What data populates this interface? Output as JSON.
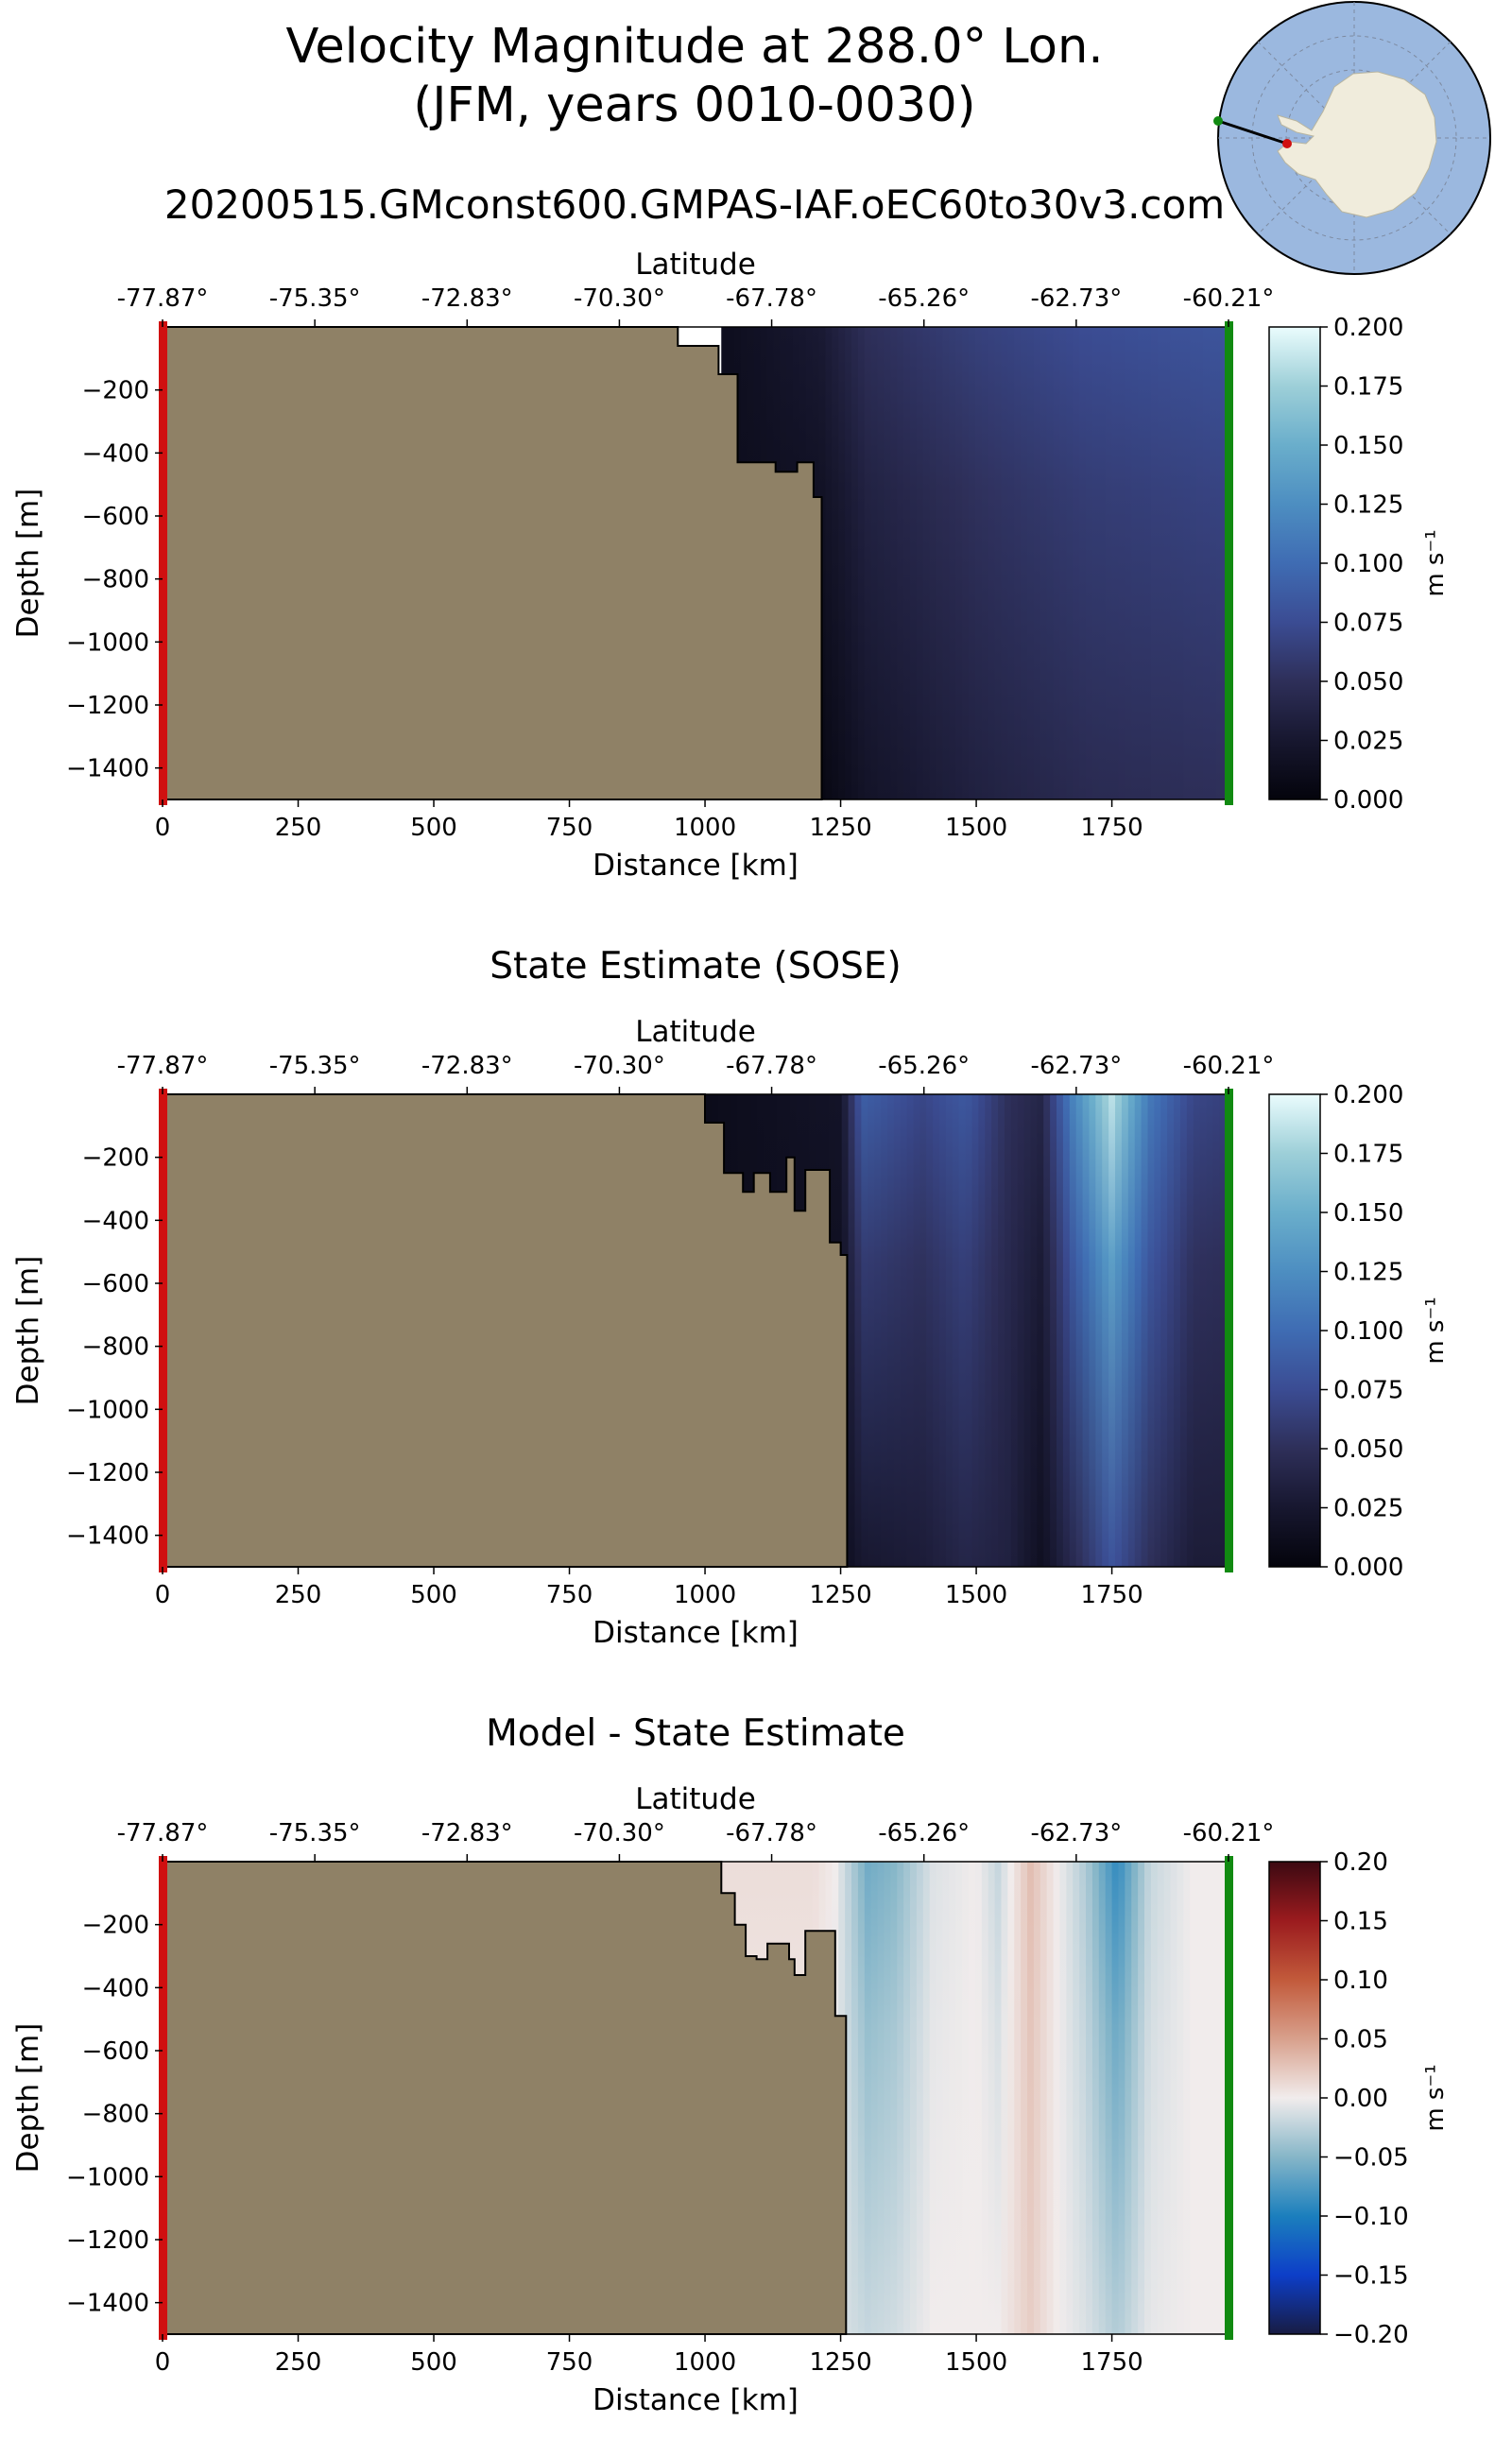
{
  "figure": {
    "title_line1": "Velocity Magnitude at 288.0° Lon.",
    "title_line2": "(JFM, years 0010-0030)",
    "run_name": "20200515.GMconst600.GMPAS-IAF.oEC60to30v3.com",
    "colors": {
      "land": "#8f8166",
      "start_marker": "#d01010",
      "end_marker": "#118a11",
      "ocean_map": "#9bb8df",
      "ice_map": "#f0ecdc"
    }
  },
  "chart_data": [
    {
      "type": "heatmap",
      "title": "",
      "xlabel": "Distance [km]",
      "ylabel": "Depth [m]",
      "top_xlabel": "Latitude",
      "xlim": [
        0,
        1965
      ],
      "ylim": [
        -1500,
        0
      ],
      "x_ticks": [
        0,
        250,
        500,
        750,
        1000,
        1250,
        1500,
        1750
      ],
      "y_ticks": [
        -200,
        -400,
        -600,
        -800,
        -1000,
        -1200,
        -1400
      ],
      "lat_ticks": [
        "-77.87°",
        "-75.35°",
        "-72.83°",
        "-70.30°",
        "-67.78°",
        "-65.26°",
        "-62.73°",
        "-60.21°"
      ],
      "colorbar": {
        "label": "m s⁻¹",
        "colormap": "ice",
        "min": 0.0,
        "max": 0.2,
        "ticks": [
          "0.000",
          "0.025",
          "0.050",
          "0.075",
          "0.100",
          "0.125",
          "0.150",
          "0.175",
          "0.200"
        ]
      },
      "land_boundary": [
        [
          0,
          -1500
        ],
        [
          0,
          0
        ],
        [
          950,
          0
        ],
        [
          950,
          -60
        ],
        [
          1025,
          -60
        ],
        [
          1025,
          -150
        ],
        [
          1060,
          -150
        ],
        [
          1060,
          -430
        ],
        [
          1130,
          -430
        ],
        [
          1130,
          -460
        ],
        [
          1170,
          -460
        ],
        [
          1170,
          -430
        ],
        [
          1200,
          -430
        ],
        [
          1200,
          -540
        ],
        [
          1215,
          -540
        ],
        [
          1215,
          -1500
        ]
      ],
      "field": {
        "x": [
          1030,
          1215,
          1300,
          1500,
          1700,
          1965
        ],
        "surface": [
          0.012,
          0.028,
          0.05,
          0.065,
          0.075,
          0.082
        ],
        "bottom": [
          0.01,
          0.005,
          0.02,
          0.035,
          0.045,
          0.05
        ]
      }
    },
    {
      "type": "heatmap",
      "title": "State Estimate (SOSE)",
      "xlabel": "Distance [km]",
      "ylabel": "Depth [m]",
      "top_xlabel": "Latitude",
      "xlim": [
        0,
        1965
      ],
      "ylim": [
        -1500,
        0
      ],
      "x_ticks": [
        0,
        250,
        500,
        750,
        1000,
        1250,
        1500,
        1750
      ],
      "y_ticks": [
        -200,
        -400,
        -600,
        -800,
        -1000,
        -1200,
        -1400
      ],
      "lat_ticks": [
        "-77.87°",
        "-75.35°",
        "-72.83°",
        "-70.30°",
        "-67.78°",
        "-65.26°",
        "-62.73°",
        "-60.21°"
      ],
      "colorbar": {
        "label": "m s⁻¹",
        "colormap": "ice",
        "min": 0.0,
        "max": 0.2,
        "ticks": [
          "0.000",
          "0.025",
          "0.050",
          "0.075",
          "0.100",
          "0.125",
          "0.150",
          "0.175",
          "0.200"
        ]
      },
      "land_boundary": [
        [
          0,
          -1500
        ],
        [
          0,
          0
        ],
        [
          1000,
          0
        ],
        [
          1000,
          -90
        ],
        [
          1035,
          -90
        ],
        [
          1035,
          -250
        ],
        [
          1070,
          -250
        ],
        [
          1070,
          -310
        ],
        [
          1090,
          -310
        ],
        [
          1090,
          -250
        ],
        [
          1120,
          -250
        ],
        [
          1120,
          -310
        ],
        [
          1150,
          -310
        ],
        [
          1150,
          -200
        ],
        [
          1165,
          -200
        ],
        [
          1165,
          -370
        ],
        [
          1185,
          -370
        ],
        [
          1185,
          -240
        ],
        [
          1230,
          -240
        ],
        [
          1230,
          -470
        ],
        [
          1250,
          -470
        ],
        [
          1250,
          -510
        ],
        [
          1262,
          -510
        ],
        [
          1262,
          -1500
        ]
      ],
      "field": {
        "x": [
          1000,
          1250,
          1290,
          1400,
          1480,
          1560,
          1620,
          1680,
          1750,
          1820,
          1900,
          1965
        ],
        "surface": [
          0.01,
          0.02,
          0.09,
          0.07,
          0.085,
          0.05,
          0.04,
          0.12,
          0.185,
          0.11,
          0.07,
          0.065
        ],
        "bottom": [
          0.01,
          0.01,
          0.025,
          0.03,
          0.04,
          0.035,
          0.015,
          0.045,
          0.08,
          0.05,
          0.03,
          0.03
        ]
      }
    },
    {
      "type": "heatmap",
      "title": "Model - State Estimate",
      "xlabel": "Distance [km]",
      "ylabel": "Depth [m]",
      "top_xlabel": "Latitude",
      "xlim": [
        0,
        1965
      ],
      "ylim": [
        -1500,
        0
      ],
      "x_ticks": [
        0,
        250,
        500,
        750,
        1000,
        1250,
        1500,
        1750
      ],
      "y_ticks": [
        -200,
        -400,
        -600,
        -800,
        -1000,
        -1200,
        -1400
      ],
      "lat_ticks": [
        "-77.87°",
        "-75.35°",
        "-72.83°",
        "-70.30°",
        "-67.78°",
        "-65.26°",
        "-62.73°",
        "-60.21°"
      ],
      "colorbar": {
        "label": "m s⁻¹",
        "colormap": "balance",
        "min": -0.2,
        "max": 0.2,
        "ticks": [
          "0.20",
          "0.15",
          "0.10",
          "0.05",
          "0.00",
          "−0.05",
          "−0.10",
          "−0.15",
          "−0.20"
        ]
      },
      "land_boundary": [
        [
          0,
          -1500
        ],
        [
          0,
          0
        ],
        [
          1030,
          0
        ],
        [
          1030,
          -100
        ],
        [
          1055,
          -100
        ],
        [
          1055,
          -200
        ],
        [
          1075,
          -200
        ],
        [
          1075,
          -300
        ],
        [
          1095,
          -300
        ],
        [
          1095,
          -310
        ],
        [
          1115,
          -310
        ],
        [
          1115,
          -260
        ],
        [
          1155,
          -260
        ],
        [
          1155,
          -310
        ],
        [
          1165,
          -310
        ],
        [
          1165,
          -360
        ],
        [
          1185,
          -360
        ],
        [
          1185,
          -220
        ],
        [
          1240,
          -220
        ],
        [
          1240,
          -490
        ],
        [
          1260,
          -490
        ],
        [
          1260,
          -1500
        ]
      ],
      "field": {
        "x": [
          1030,
          1200,
          1240,
          1300,
          1350,
          1420,
          1500,
          1540,
          1600,
          1650,
          1700,
          1760,
          1820,
          1900,
          1965
        ],
        "surface": [
          0.01,
          0.01,
          0.0,
          -0.06,
          -0.05,
          -0.01,
          0.0,
          -0.02,
          0.03,
          0.0,
          -0.03,
          -0.09,
          -0.02,
          0.0,
          0.0
        ],
        "bottom": [
          0.0,
          0.0,
          -0.01,
          -0.02,
          -0.015,
          0.0,
          0.0,
          0.0,
          0.02,
          0.0,
          -0.01,
          -0.03,
          -0.005,
          0.0,
          0.0
        ]
      }
    }
  ]
}
